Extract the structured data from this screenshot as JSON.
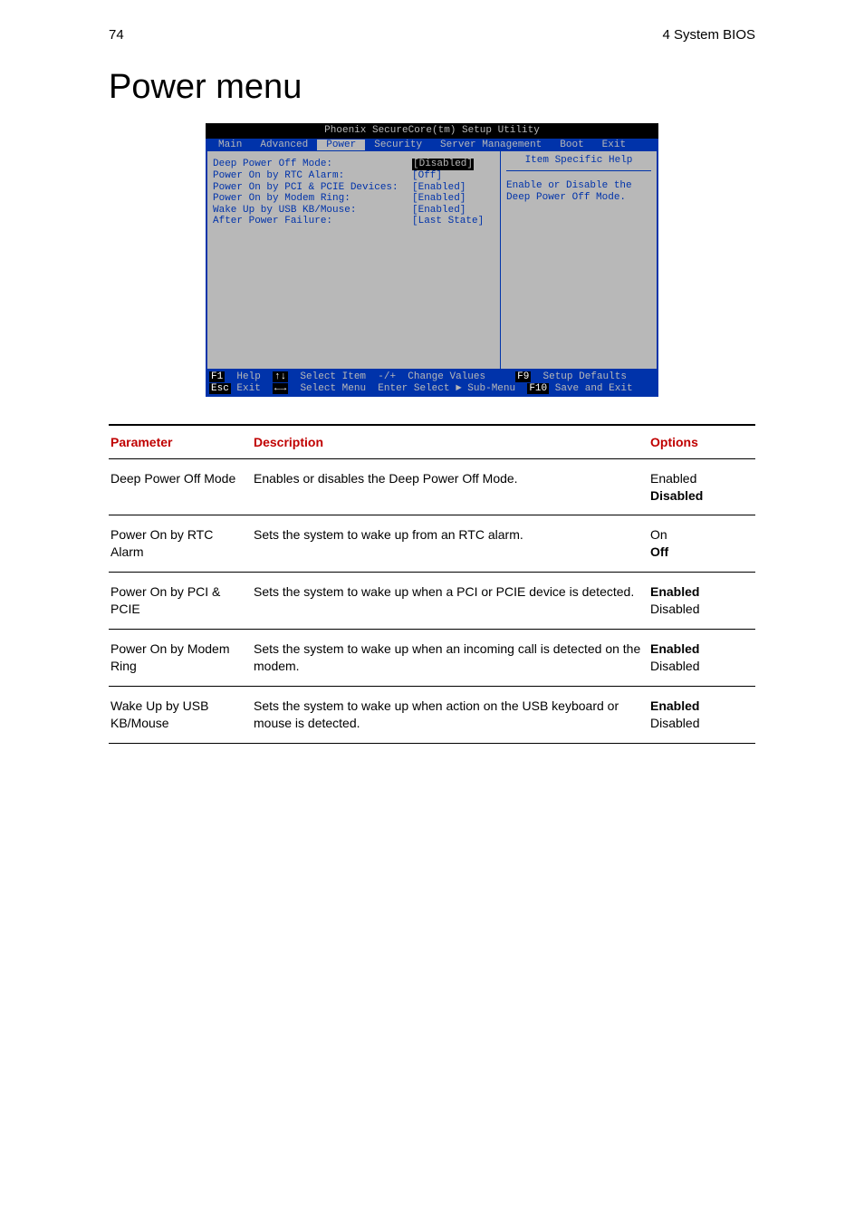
{
  "header": {
    "page_number": "74",
    "chapter": "4 System BIOS"
  },
  "title": "Power menu",
  "bios": {
    "title_bar": "Phoenix SecureCore(tm) Setup Utility",
    "menu_items": [
      "Main",
      "Advanced",
      "Power",
      "Security",
      "Server Management",
      "Boot",
      "Exit"
    ],
    "active_menu_index": 2,
    "help_title": "Item Specific Help",
    "help_text": "Enable or Disable the Deep Power Off Mode.",
    "rows": [
      {
        "label": "Deep Power Off Mode:",
        "value": "[Disabled]",
        "highlight": true
      },
      {
        "label": "Power On by RTC Alarm:",
        "value": "[Off]"
      },
      {
        "label": "Power On by PCI & PCIE Devices:",
        "value": "[Enabled]"
      },
      {
        "label": "Power On by Modem Ring:",
        "value": "[Enabled]"
      },
      {
        "label": "Wake Up by USB KB/Mouse:",
        "value": "[Enabled]"
      },
      {
        "label": "After Power Failure:",
        "value": "[Last State]"
      }
    ],
    "footer": {
      "line1": {
        "f1": "F1",
        "t1": "Help  ",
        "k2": "↑↓",
        "t2": "Select Item  ",
        "k3": "-/+",
        "t3": "  Change Values     ",
        "f9": "F9",
        "t4": "  Setup Defaults"
      },
      "line2": {
        "esc": "Esc",
        "t1": " Exit  ",
        "k2": "←→",
        "t2": "Select Menu  ",
        "k3": "Enter",
        "t3": " Select ► Sub-Menu  ",
        "f10": "F10",
        "t4": " Save and Exit"
      }
    },
    "colors": {
      "menu_bg": "#0033aa",
      "body_bg": "#b8b8b8",
      "text_blue": "#0033aa",
      "text_gray": "#b8b8b8",
      "black": "#000000"
    }
  },
  "table": {
    "headers": {
      "param": "Parameter",
      "desc": "Description",
      "opts": "Options"
    },
    "header_color": "#c00000",
    "rows": [
      {
        "param": "Deep Power Off Mode",
        "desc": "Enables or disables the Deep Power Off Mode.",
        "options": [
          {
            "text": "Enabled",
            "bold": false
          },
          {
            "text": "Disabled",
            "bold": true
          }
        ]
      },
      {
        "param": "Power On by RTC Alarm",
        "desc": "Sets the system to wake up from an RTC alarm.",
        "options": [
          {
            "text": "On",
            "bold": false
          },
          {
            "text": "Off",
            "bold": true
          }
        ]
      },
      {
        "param": "Power On by PCI & PCIE",
        "desc": "Sets the system to wake up when a PCI or PCIE device is detected.",
        "options": [
          {
            "text": "Enabled",
            "bold": true
          },
          {
            "text": "Disabled",
            "bold": false
          }
        ]
      },
      {
        "param": "Power On by Modem Ring",
        "desc": "Sets the system to wake up when an incoming call is detected on the modem.",
        "options": [
          {
            "text": "Enabled",
            "bold": true
          },
          {
            "text": "Disabled",
            "bold": false
          }
        ]
      },
      {
        "param": "Wake Up by USB KB/Mouse",
        "desc": "Sets the system to wake up when action on the USB keyboard or mouse is detected.",
        "options": [
          {
            "text": "Enabled",
            "bold": true
          },
          {
            "text": "Disabled",
            "bold": false
          }
        ]
      }
    ]
  }
}
